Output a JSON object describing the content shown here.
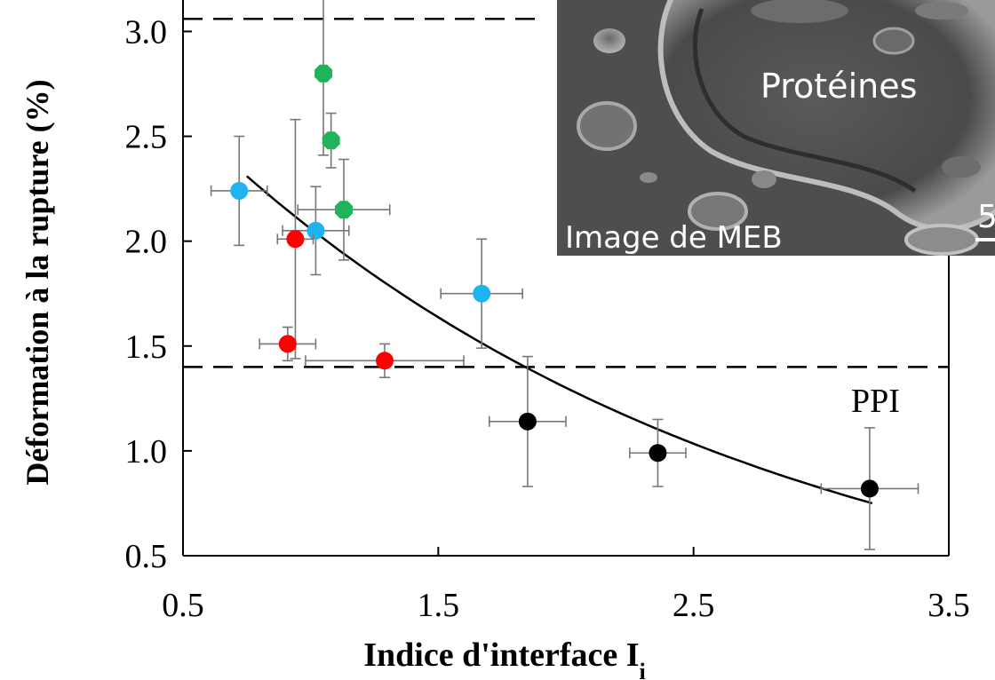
{
  "chart_data": {
    "type": "scatter",
    "xlabel": "Indice d'interface I",
    "xlabel_sub": "i",
    "ylabel": "Déformation à  la rupture (%)",
    "xlim": [
      0.5,
      3.5
    ],
    "ylim": [
      0.5,
      3.15
    ],
    "x_ticks": [
      "0.5",
      "1.5",
      "2.5",
      "3.5"
    ],
    "y_ticks": [
      "0.5",
      "1.0",
      "1.5",
      "2.0",
      "2.5",
      "3.0"
    ],
    "grid": false,
    "colors": {
      "cyan": "#1fb4ef",
      "red": "#ff0000",
      "green": "#1fb35a",
      "black": "#000000",
      "errorbar": "#777777"
    },
    "series": [
      {
        "color": "cyan",
        "points": [
          {
            "x": 0.72,
            "y": 2.24,
            "xerr": 0.11,
            "yerr": 0.26
          },
          {
            "x": 1.02,
            "y": 2.05,
            "xerr": 0.13,
            "yerr": 0.21
          },
          {
            "x": 1.67,
            "y": 1.75,
            "xerr": 0.16,
            "yerr": 0.26
          }
        ]
      },
      {
        "color": "red",
        "points": [
          {
            "x": 0.94,
            "y": 2.01,
            "xerr": 0.07,
            "yerr": 0.57
          },
          {
            "x": 0.91,
            "y": 1.51,
            "xerr": 0.11,
            "yerr": 0.08
          },
          {
            "x": 1.29,
            "y": 1.43,
            "xerr": 0.31,
            "yerr": 0.08
          }
        ]
      },
      {
        "color": "green",
        "points": [
          {
            "x": 1.05,
            "y": 2.8,
            "xerr": 0.0,
            "yerr": 0.39
          },
          {
            "x": 1.08,
            "y": 2.48,
            "xerr": 0.0,
            "yerr": 0.13
          },
          {
            "x": 1.13,
            "y": 2.15,
            "xerr": 0.18,
            "yerr": 0.24
          }
        ]
      },
      {
        "color": "black",
        "points": [
          {
            "x": 1.85,
            "y": 1.14,
            "xerr": 0.15,
            "yerr": 0.31
          },
          {
            "x": 2.36,
            "y": 0.99,
            "xerr": 0.11,
            "yerr": 0.16
          },
          {
            "x": 3.19,
            "y": 0.82,
            "xerr": 0.19,
            "yerr": 0.29
          }
        ]
      }
    ],
    "reference_lines": [
      {
        "y": 3.06,
        "style": "dashed",
        "x_range": [
          0.5,
          1.88
        ]
      },
      {
        "y": 1.4,
        "style": "dashed",
        "x_range": [
          0.5,
          3.5
        ]
      }
    ],
    "fit_curve": {
      "type": "exponential",
      "from_x": 0.75,
      "to_x": 3.2,
      "points": [
        [
          0.75,
          2.31
        ],
        [
          1.5,
          1.62
        ],
        [
          2.0,
          1.3
        ],
        [
          2.5,
          1.05
        ],
        [
          3.2,
          0.75
        ]
      ]
    },
    "annotations": [
      {
        "text": "PPI",
        "x": 3.3,
        "y": 1.22
      }
    ]
  },
  "inset": {
    "label_top": "Protéines",
    "label_bottom": "Image de MEB",
    "scale_fragment": "5"
  }
}
